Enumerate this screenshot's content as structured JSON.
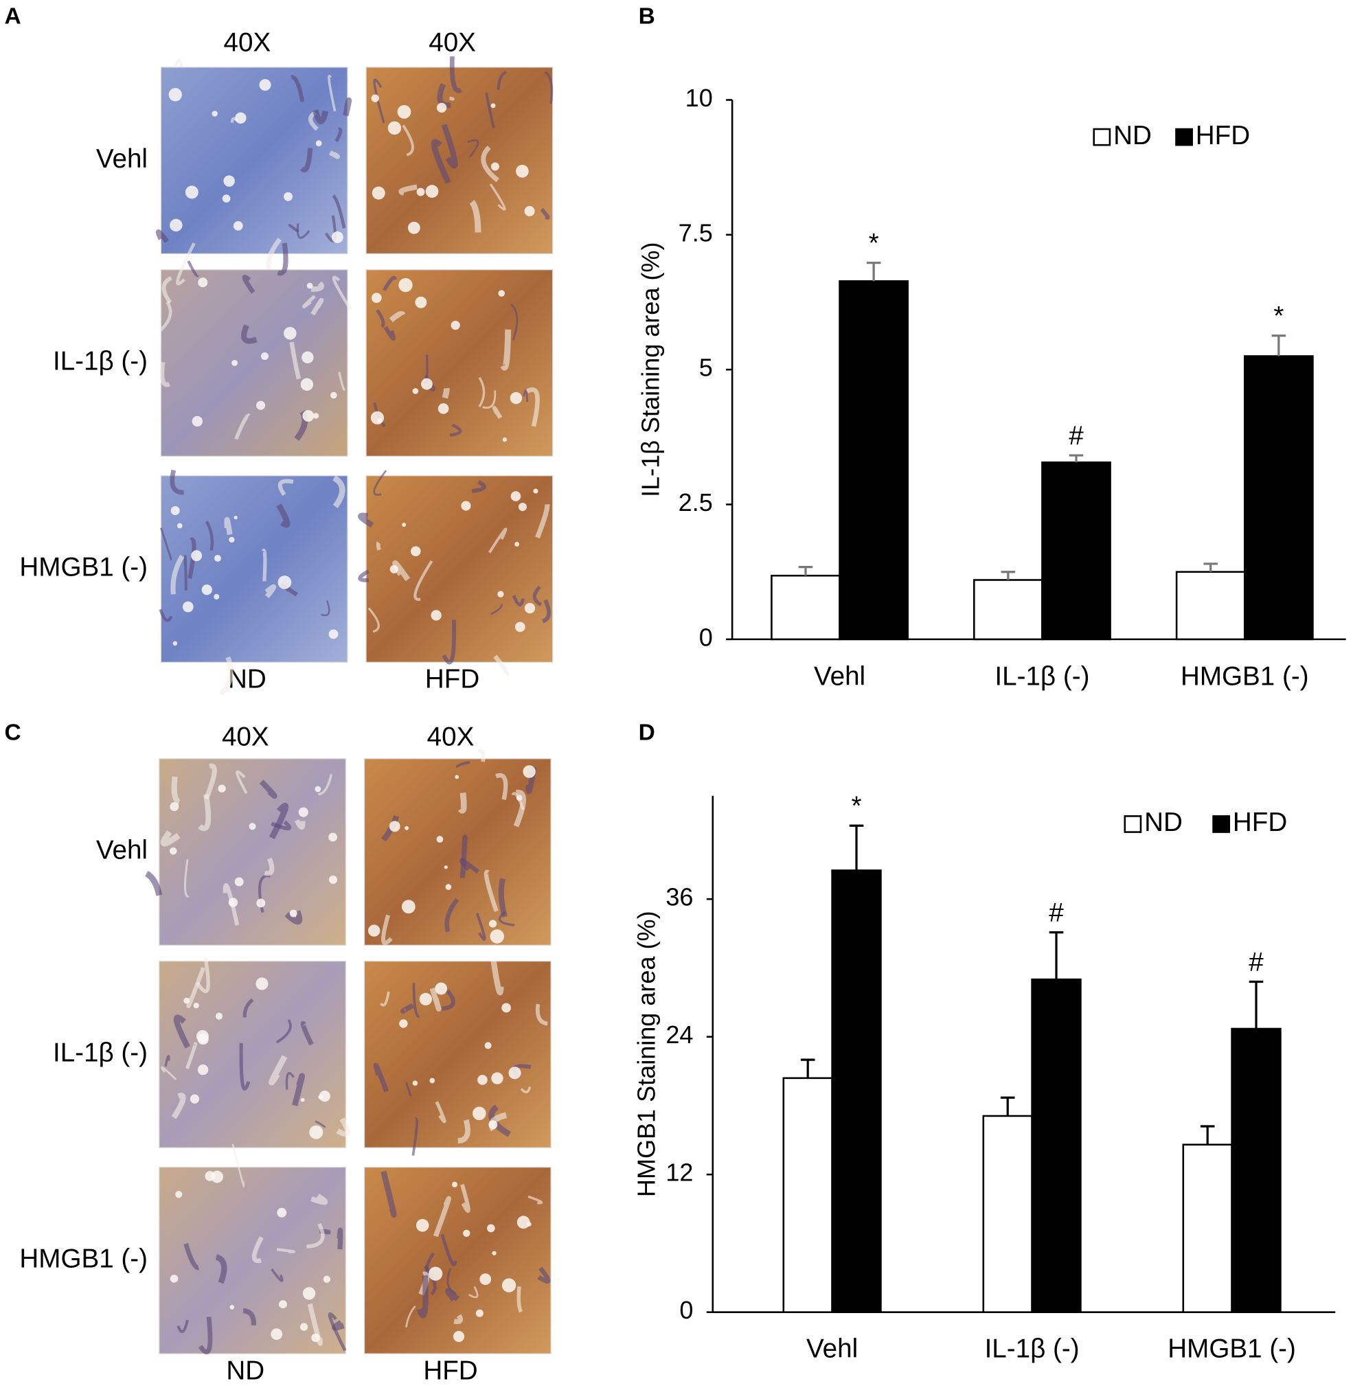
{
  "image_panels": [
    {
      "letter": "A",
      "magnifications": [
        "40X",
        "40X"
      ],
      "rows": [
        "Vehl",
        "IL-1β (-)",
        "HMGB1 (-)"
      ],
      "columns": [
        "ND",
        "HFD"
      ]
    },
    {
      "letter": "C",
      "magnifications": [
        "40X",
        "40X"
      ],
      "rows": [
        "Vehl",
        "IL-1β (-)",
        "HMGB1 (-)"
      ],
      "columns": [
        "ND",
        "HFD"
      ]
    }
  ],
  "chart_data": [
    {
      "type": "bar",
      "letter": "B",
      "y_label": "IL-1β Staining area (%)",
      "categories": [
        "Vehl",
        "IL-1β (-)",
        "HMGB1 (-)"
      ],
      "series": [
        {
          "name": "ND",
          "color": "#ffffff",
          "values": [
            1.18,
            1.1,
            1.25
          ],
          "errors": [
            0.16,
            0.15,
            0.15
          ]
        },
        {
          "name": "HFD",
          "color": "#000000",
          "values": [
            6.64,
            3.28,
            5.25
          ],
          "errors": [
            0.34,
            0.13,
            0.38
          ],
          "markers": [
            "*",
            "#",
            "*"
          ]
        }
      ],
      "ylim": [
        0,
        10
      ],
      "yticks": [
        0,
        2.5,
        5,
        7.5,
        10
      ]
    },
    {
      "type": "bar",
      "letter": "D",
      "y_label": "HMGB1 Staining area (%)",
      "categories": [
        "Vehl",
        "IL-1β (-)",
        "HMGB1 (-)"
      ],
      "series": [
        {
          "name": "ND",
          "color": "#ffffff",
          "values": [
            20.4,
            17.1,
            14.6
          ],
          "errors": [
            1.6,
            1.6,
            1.6
          ]
        },
        {
          "name": "HFD",
          "color": "#000000",
          "values": [
            38.5,
            29.0,
            24.7
          ],
          "errors": [
            3.9,
            4.1,
            4.1
          ],
          "markers": [
            "*",
            "#",
            "#"
          ]
        }
      ],
      "ylim": [
        0,
        45
      ],
      "yticks": [
        0,
        12,
        24,
        36
      ]
    }
  ]
}
